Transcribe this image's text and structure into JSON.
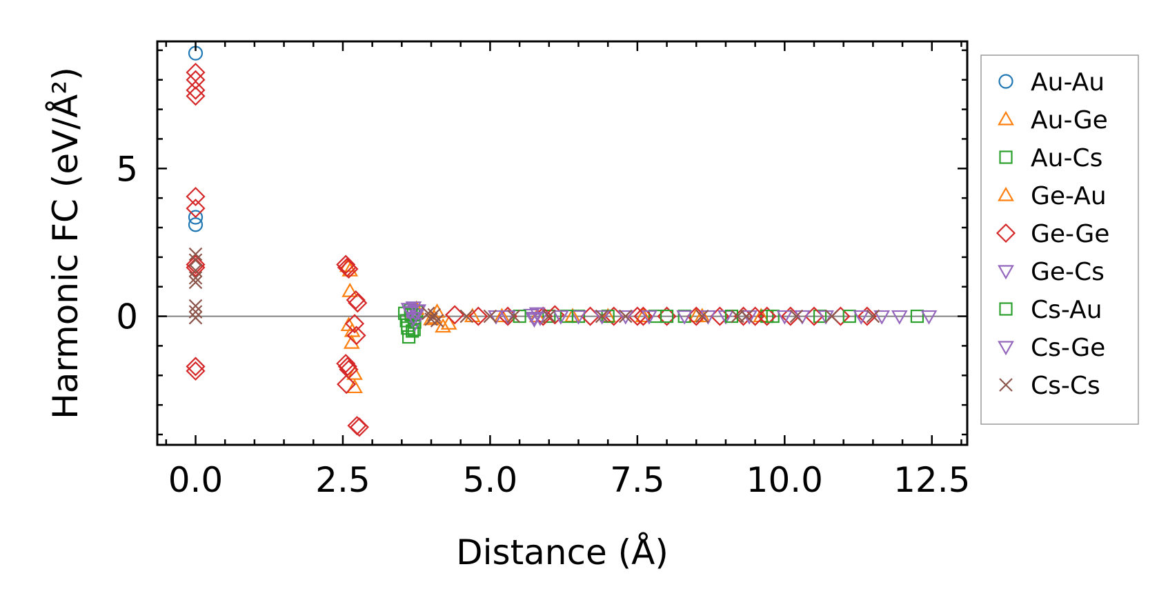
{
  "chart_data": {
    "type": "scatter",
    "xlabel": "Distance (Å)",
    "ylabel": "Harmonic FC (eV/Å²)",
    "xlim": [
      -0.65,
      13.1
    ],
    "ylim": [
      -4.35,
      9.3
    ],
    "xticks": [
      0,
      2.5,
      5,
      7.5,
      10,
      12.5
    ],
    "xtick_labels": [
      "0.0",
      "2.5",
      "5.0",
      "7.5",
      "10.0",
      "12.5"
    ],
    "yticks": [
      0,
      5
    ],
    "ytick_labels": [
      "0",
      "5"
    ],
    "zero_line": true,
    "legend_position": "right-outside",
    "series": [
      {
        "name": "Au-Au",
        "marker": "circle",
        "color": "#1f77b4",
        "x": [
          0,
          0,
          0
        ],
        "y": [
          8.9,
          3.35,
          3.1
        ]
      },
      {
        "name": "Au-Ge",
        "marker": "triangle-up",
        "color": "#ff7f0e",
        "x": [
          2.58,
          2.62,
          2.6,
          2.65,
          2.7,
          3.7,
          4.0,
          4.1,
          4.3,
          5.2,
          6.4,
          7.6,
          8.5,
          9.6
        ],
        "y": [
          1.7,
          0.85,
          -0.3,
          -0.9,
          -1.95,
          0.1,
          -0.1,
          0.15,
          -0.25,
          0.0,
          0.0,
          0.0,
          0.0,
          0.0
        ]
      },
      {
        "name": "Au-Cs",
        "marker": "square",
        "color": "#2ca02c",
        "x": [
          3.55,
          3.58,
          3.6,
          3.62,
          3.65,
          3.68,
          3.7,
          3.72,
          3.75,
          6.0,
          6.5,
          7.8,
          8.3,
          9.7,
          10.6,
          12.25
        ],
        "y": [
          0.1,
          -0.15,
          -0.4,
          -0.7,
          0.2,
          -0.5,
          0.05,
          -0.2,
          0.15,
          0.0,
          0.0,
          0.0,
          0.0,
          0.0,
          0.0,
          0.0
        ]
      },
      {
        "name": "Ge-Au",
        "marker": "triangle-up",
        "color": "#ff7f0e",
        "x": [
          2.62,
          2.66,
          2.7,
          3.75,
          4.05,
          4.2,
          4.7,
          5.8,
          7.0,
          8.6
        ],
        "y": [
          1.55,
          -0.5,
          -2.4,
          0.25,
          -0.05,
          -0.35,
          0.0,
          0.0,
          0.0,
          0.0
        ]
      },
      {
        "name": "Ge-Ge",
        "marker": "diamond",
        "color": "#d62728",
        "x": [
          0,
          0,
          0,
          0,
          0,
          0,
          0,
          0,
          0,
          0,
          2.55,
          2.57,
          2.6,
          2.55,
          2.58,
          2.6,
          2.56,
          2.72,
          2.75,
          2.7,
          2.73,
          2.78,
          2.74,
          4.4,
          4.8,
          5.3,
          5.9,
          6.1,
          6.7,
          7.1,
          7.5,
          7.6,
          8.0,
          8.5,
          8.9,
          9.3,
          9.5,
          9.7,
          10.1,
          10.5,
          10.95,
          11.4
        ],
        "y": [
          8.25,
          8.0,
          7.65,
          7.45,
          4.05,
          3.65,
          1.75,
          1.65,
          -1.7,
          -1.85,
          1.75,
          1.65,
          1.6,
          -1.6,
          -1.7,
          -1.8,
          -2.3,
          0.55,
          0.45,
          -0.25,
          -0.65,
          -3.75,
          -3.7,
          0.05,
          0.0,
          0.0,
          0.0,
          0.05,
          0.0,
          0.0,
          0.0,
          0.0,
          0.0,
          0.0,
          0.0,
          0.0,
          0.0,
          0.0,
          0.0,
          0.0,
          0.0,
          0.0
        ]
      },
      {
        "name": "Ge-Cs",
        "marker": "triangle-down",
        "color": "#9467bd",
        "x": [
          3.62,
          3.65,
          3.68,
          3.7,
          3.72,
          3.75,
          3.78,
          5.1,
          5.7,
          5.75,
          5.8,
          5.85,
          6.5,
          7.3,
          8.3,
          9.0,
          10.3
        ],
        "y": [
          0.25,
          0.1,
          -0.1,
          0.3,
          -0.25,
          0.05,
          0.2,
          0.0,
          0.05,
          -0.1,
          0.1,
          -0.05,
          0.0,
          0.0,
          0.0,
          0.0,
          0.0
        ]
      },
      {
        "name": "Cs-Au",
        "marker": "square",
        "color": "#2ca02c",
        "x": [
          3.6,
          3.66,
          3.71,
          5.5,
          6.3,
          7.0,
          8.0,
          9.1,
          9.8,
          11.1
        ],
        "y": [
          -0.3,
          0.05,
          -0.45,
          0.0,
          0.0,
          0.0,
          0.0,
          0.0,
          0.0,
          0.0
        ]
      },
      {
        "name": "Cs-Ge",
        "marker": "triangle-down",
        "color": "#9467bd",
        "x": [
          3.64,
          3.7,
          3.76,
          5.3,
          5.75,
          6.2,
          6.9,
          7.7,
          8.7,
          9.4,
          10.0,
          10.7,
          11.3,
          11.65,
          11.95,
          12.45
        ],
        "y": [
          0.15,
          -0.05,
          0.2,
          0.0,
          -0.05,
          0.0,
          0.0,
          0.0,
          0.0,
          0.0,
          0.0,
          0.0,
          0.0,
          0.0,
          0.0,
          0.0
        ]
      },
      {
        "name": "Cs-Cs",
        "marker": "x",
        "color": "#8c564b",
        "x": [
          0,
          0,
          0,
          0,
          0,
          0,
          0,
          0,
          3.95,
          4.0,
          4.05,
          4.1,
          4.6,
          5.0,
          5.4,
          6.0,
          6.9,
          7.3,
          8.6,
          9.2,
          9.35,
          10.2,
          10.8,
          11.5
        ],
        "y": [
          2.1,
          1.9,
          1.55,
          1.3,
          1.15,
          0.35,
          0.15,
          -0.05,
          0.1,
          -0.1,
          0.05,
          -0.15,
          0.0,
          0.0,
          0.0,
          0.0,
          0.0,
          0.0,
          0.0,
          0.0,
          0.0,
          0.0,
          0.0,
          0.0
        ]
      }
    ]
  }
}
